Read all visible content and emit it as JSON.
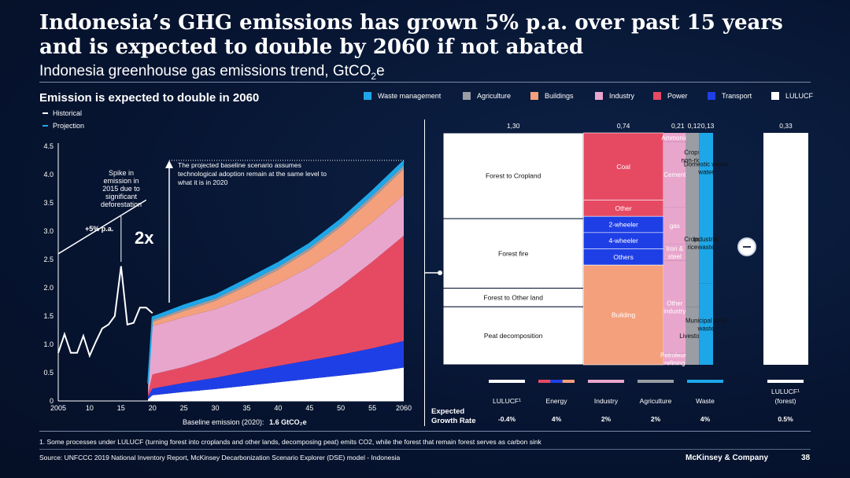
{
  "header": {
    "title_line1": "Indonesia’s GHG emissions has grown 5% p.a. over past 15 years",
    "title_line2": "and is expected to double by 2060 if not abated",
    "subtitle_main": "Indonesia greenhouse gas emissions trend, GtCO",
    "subtitle_sub": "2",
    "subtitle_end": "e"
  },
  "section_title": "Emission is expected to double in 2060",
  "legend": {
    "historical": "Historical",
    "projection": "Projection",
    "items": [
      {
        "label": "Waste management",
        "color": "#1ea7e8"
      },
      {
        "label": "Agriculture",
        "color": "#9a9da3"
      },
      {
        "label": "Buildings",
        "color": "#f4a07c"
      },
      {
        "label": "Industry",
        "color": "#e9a6cd"
      },
      {
        "label": "Power",
        "color": "#e64a63"
      },
      {
        "label": "Transport",
        "color": "#1f3fe6"
      },
      {
        "label": "LULUCF",
        "color": "#ffffff"
      }
    ]
  },
  "chart_data": [
    {
      "type": "area",
      "title": "Emission is expected to double in 2060",
      "xlabel": "Baseline emission (2020):",
      "xlabel_value": "1.6 GtCO₂e",
      "xlim": [
        2005,
        2060
      ],
      "ylim": [
        0,
        4.5
      ],
      "x_ticks": [
        "2005",
        "10",
        "15",
        "20",
        "25",
        "30",
        "35",
        "40",
        "45",
        "50",
        "55",
        "2060"
      ],
      "y_ticks": [
        "0",
        "0.5",
        "1.0",
        "1.5",
        "2.0",
        "2.5",
        "3.0",
        "3.5",
        "4.0",
        "4.5"
      ],
      "historical": {
        "x": [
          2005,
          2006,
          2007,
          2008,
          2009,
          2010,
          2011,
          2012,
          2013,
          2014,
          2015,
          2016,
          2017,
          2018,
          2019,
          2020
        ],
        "y": [
          0.85,
          1.18,
          0.85,
          0.85,
          1.15,
          0.8,
          1.05,
          1.28,
          1.35,
          1.5,
          2.38,
          1.35,
          1.38,
          1.65,
          1.65,
          1.55
        ]
      },
      "trend_line": {
        "x": [
          2005,
          2019
        ],
        "y": [
          2.6,
          3.55
        ]
      },
      "series": [
        {
          "name": "LULUCF",
          "color": "#ffffff",
          "x": [
            2019.3,
            2020,
            2025,
            2030,
            2035,
            2040,
            2045,
            2050,
            2055,
            2060
          ],
          "values": [
            0.03,
            0.1,
            0.16,
            0.21,
            0.27,
            0.33,
            0.39,
            0.45,
            0.51,
            0.59
          ]
        },
        {
          "name": "Transport",
          "color": "#1f3fe6",
          "x": [
            2019.3,
            2020,
            2025,
            2030,
            2035,
            2040,
            2045,
            2050,
            2055,
            2060
          ],
          "values": [
            0.05,
            0.12,
            0.16,
            0.2,
            0.25,
            0.29,
            0.33,
            0.37,
            0.42,
            0.47
          ]
        },
        {
          "name": "Power",
          "color": "#e64a63",
          "x": [
            2019.3,
            2020,
            2025,
            2030,
            2035,
            2040,
            2045,
            2050,
            2055,
            2060
          ],
          "values": [
            0.05,
            0.25,
            0.28,
            0.37,
            0.52,
            0.7,
            0.93,
            1.21,
            1.53,
            1.86
          ]
        },
        {
          "name": "Industry",
          "color": "#e9a6cd",
          "x": [
            2019.3,
            2020,
            2025,
            2030,
            2035,
            2040,
            2045,
            2050,
            2055,
            2060
          ],
          "values": [
            0.1,
            0.85,
            0.88,
            0.84,
            0.79,
            0.75,
            0.71,
            0.69,
            0.7,
            0.72
          ]
        },
        {
          "name": "Buildings",
          "color": "#f4a07c",
          "x": [
            2019.3,
            2020,
            2025,
            2030,
            2035,
            2040,
            2045,
            2050,
            2055,
            2060
          ],
          "values": [
            0.04,
            0.08,
            0.11,
            0.15,
            0.2,
            0.25,
            0.3,
            0.36,
            0.41,
            0.46
          ]
        },
        {
          "name": "Agriculture",
          "color": "#9a9da3",
          "x": [
            2019.3,
            2020,
            2025,
            2030,
            2035,
            2040,
            2045,
            2050,
            2055,
            2060
          ],
          "values": [
            0.02,
            0.03,
            0.04,
            0.04,
            0.05,
            0.05,
            0.05,
            0.05,
            0.06,
            0.06
          ]
        },
        {
          "name": "Waste management",
          "color": "#1ea7e8",
          "x": [
            2019.3,
            2020,
            2025,
            2030,
            2035,
            2040,
            2045,
            2050,
            2055,
            2060
          ],
          "values": [
            0.02,
            0.05,
            0.06,
            0.06,
            0.07,
            0.07,
            0.07,
            0.08,
            0.08,
            0.08
          ]
        }
      ],
      "annotations": {
        "growth_rate": "+5% p.a.",
        "spike": [
          "Spike in",
          "emission in",
          "2015 due to",
          "significant",
          "deforestation"
        ],
        "multiplier": "2x",
        "baseline_note": [
          "The projected baseline scenario assumes",
          "technological adoption remain at the same level to",
          "what it is in 2020"
        ]
      }
    },
    {
      "type": "marimekko",
      "column_values": [
        "1,30",
        "0,74",
        "0,21",
        "0,12",
        "0,13",
        "0,33"
      ],
      "columns": [
        {
          "sector": "LULUCF",
          "width": 1.3,
          "segments": [
            {
              "label": "Forest to Cropland",
              "share": 0.37
            },
            {
              "label": "Forest fire",
              "share": 0.3
            },
            {
              "label": "Forest to Other land",
              "share": 0.08
            },
            {
              "label": "Peat decomposition",
              "share": 0.25
            }
          ]
        },
        {
          "sector": "Energy",
          "width": 0.74,
          "segments": [
            {
              "label": "Coal",
              "share": 0.29
            },
            {
              "label": "Other",
              "share": 0.07
            },
            {
              "label": "2-wheeler",
              "share": 0.07
            },
            {
              "label": "4-wheeler",
              "share": 0.07
            },
            {
              "label": "Others",
              "share": 0.07
            },
            {
              "label": "Building",
              "share": 0.43
            }
          ]
        },
        {
          "sector": "Industry",
          "width": 0.21,
          "segments": [
            {
              "label": "Ammonia",
              "share": 0.04
            },
            {
              "label": "Cement",
              "share": 0.28
            },
            {
              "label": "gas",
              "share": 0.16
            },
            {
              "label": "Iron & steel",
              "share": 0.07
            },
            {
              "label": "Other industry",
              "share": 0.4
            },
            {
              "label": "Petroleum refining",
              "share": 0.05
            }
          ]
        },
        {
          "sector": "Agriculture",
          "width": 0.12,
          "segments": [
            {
              "label": "Crops non-rice",
              "share": 0.2
            },
            {
              "label": "Crops rice",
              "share": 0.55
            },
            {
              "label": "Livestock",
              "share": 0.25
            }
          ]
        },
        {
          "sector": "Waste",
          "width": 0.13,
          "segments": [
            {
              "label": "Domestic waste water",
              "share": 0.3
            },
            {
              "label": "Industrial waste",
              "share": 0.35
            },
            {
              "label": "Municipal solid waste",
              "share": 0.35
            }
          ]
        },
        {
          "sector": "LULUCF¹ (forest)",
          "width": 0.33,
          "segments": []
        }
      ],
      "growth_label": [
        "Expected",
        "Growth Rate"
      ],
      "sectors": [
        {
          "name": "LULUCF¹",
          "rate": "-0.4%"
        },
        {
          "name": "Energy",
          "rate": "4%"
        },
        {
          "name": "Industry",
          "rate": "2%"
        },
        {
          "name": "Agriculture",
          "rate": "2%"
        },
        {
          "name": "Waste",
          "rate": "4%"
        },
        {
          "name": "LULUCF¹ (forest)",
          "name_line1": "LULUCF¹",
          "name_line2": "(forest)",
          "rate": "0.5%"
        }
      ]
    }
  ],
  "footnote": "1.   Some processes under LULUCF (turning forest into croplands and other lands, decomposing peat) emits CO2, while the forest that remain forest serves as carbon sink",
  "source": "Source: UNFCCC 2019 National Inventory Report, McKinsey Decarbonization Scenario Explorer (DSE) model - Indonesia",
  "brand": "McKinsey & Company",
  "page_number": "38"
}
